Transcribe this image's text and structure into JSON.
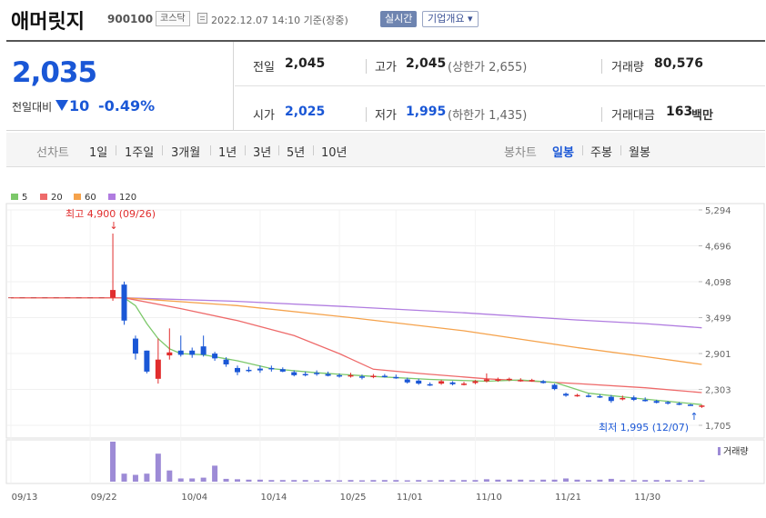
{
  "header": {
    "name": "애머릿지",
    "code": "900100",
    "market": "코스닥",
    "timestamp": "2022.12.07 14:10 기준(장중)",
    "realtime_label": "실시간",
    "company_label": "기업개요 ▾"
  },
  "price": {
    "current": "2,035",
    "change_label": "전일대비",
    "change_value": "10",
    "change_pct": "-0.49%",
    "direction": "down"
  },
  "stats": {
    "prev_close_label": "전일",
    "prev_close": "2,045",
    "high_label": "고가",
    "high": "2,045",
    "upper_limit": "(상한가 2,655)",
    "volume_label": "거래량",
    "volume": "80,576",
    "open_label": "시가",
    "open": "2,025",
    "low_label": "저가",
    "low": "1,995",
    "lower_limit": "(하한가 1,435)",
    "amount_label": "거래대금",
    "amount": "163",
    "amount_unit": "백만"
  },
  "toolbar": {
    "line_chart_label": "선차트",
    "periods": [
      "1일",
      "1주일",
      "3개월",
      "1년",
      "3년",
      "5년",
      "10년"
    ],
    "candle_chart_label": "봉차트",
    "candle_periods": [
      "일봉",
      "주봉",
      "월봉"
    ],
    "active_candle": "일봉"
  },
  "colors": {
    "up": "#e12d2d",
    "down": "#1a57d6",
    "ma5": "#7cc86a",
    "ma20": "#ee6a6a",
    "ma60": "#f5a24b",
    "ma120": "#b07ce0",
    "volume": "#9d8bd6"
  },
  "chart_data": {
    "type": "candlestick",
    "legend": [
      "5",
      "20",
      "60",
      "120"
    ],
    "y_ticks": [
      "5,294",
      "4,696",
      "4,098",
      "3,499",
      "2,901",
      "2,303",
      "1,705"
    ],
    "y_tick_values": [
      5294,
      4696,
      4098,
      3499,
      2901,
      2303,
      1705
    ],
    "ylim": [
      1705,
      5294
    ],
    "x_ticks": [
      "09/13",
      "09/22",
      "10/04",
      "10/14",
      "10/25",
      "11/01",
      "11/10",
      "11/21",
      "11/30"
    ],
    "x_tick_index": [
      0,
      7,
      15,
      22,
      29,
      34,
      41,
      48,
      55
    ],
    "annotation_high": "최고 4,900 (09/26)",
    "annotation_low": "최저 1,995 (12/07)",
    "volume_label": "거래량",
    "candles": [
      {
        "o": 3830,
        "h": 3830,
        "l": 3830,
        "c": 3830
      },
      {
        "o": 3830,
        "h": 3830,
        "l": 3830,
        "c": 3830
      },
      {
        "o": 3830,
        "h": 3830,
        "l": 3830,
        "c": 3830
      },
      {
        "o": 3830,
        "h": 3830,
        "l": 3830,
        "c": 3830
      },
      {
        "o": 3830,
        "h": 3830,
        "l": 3830,
        "c": 3830
      },
      {
        "o": 3830,
        "h": 3830,
        "l": 3830,
        "c": 3830
      },
      {
        "o": 3830,
        "h": 3830,
        "l": 3830,
        "c": 3830
      },
      {
        "o": 3830,
        "h": 3830,
        "l": 3830,
        "c": 3830
      },
      {
        "o": 3830,
        "h": 3830,
        "l": 3830,
        "c": 3830
      },
      {
        "o": 3830,
        "h": 4900,
        "l": 3780,
        "c": 3960
      },
      {
        "o": 4050,
        "h": 4100,
        "l": 3380,
        "c": 3450
      },
      {
        "o": 3150,
        "h": 3200,
        "l": 2800,
        "c": 2900
      },
      {
        "o": 2950,
        "h": 2950,
        "l": 2570,
        "c": 2600
      },
      {
        "o": 2480,
        "h": 3150,
        "l": 2400,
        "c": 2800
      },
      {
        "o": 2870,
        "h": 3320,
        "l": 2800,
        "c": 2920
      },
      {
        "o": 2950,
        "h": 3200,
        "l": 2850,
        "c": 2880
      },
      {
        "o": 2950,
        "h": 3000,
        "l": 2830,
        "c": 2880
      },
      {
        "o": 3020,
        "h": 3200,
        "l": 2850,
        "c": 2880
      },
      {
        "o": 2900,
        "h": 2930,
        "l": 2780,
        "c": 2820
      },
      {
        "o": 2800,
        "h": 2840,
        "l": 2680,
        "c": 2720
      },
      {
        "o": 2660,
        "h": 2700,
        "l": 2540,
        "c": 2590
      },
      {
        "o": 2630,
        "h": 2680,
        "l": 2590,
        "c": 2620
      },
      {
        "o": 2650,
        "h": 2700,
        "l": 2580,
        "c": 2620
      },
      {
        "o": 2660,
        "h": 2700,
        "l": 2600,
        "c": 2640
      },
      {
        "o": 2640,
        "h": 2670,
        "l": 2590,
        "c": 2600
      },
      {
        "o": 2590,
        "h": 2620,
        "l": 2520,
        "c": 2540
      },
      {
        "o": 2560,
        "h": 2600,
        "l": 2520,
        "c": 2550
      },
      {
        "o": 2580,
        "h": 2620,
        "l": 2530,
        "c": 2560
      },
      {
        "o": 2560,
        "h": 2600,
        "l": 2520,
        "c": 2530
      },
      {
        "o": 2540,
        "h": 2570,
        "l": 2500,
        "c": 2520
      },
      {
        "o": 2540,
        "h": 2580,
        "l": 2500,
        "c": 2540
      },
      {
        "o": 2520,
        "h": 2550,
        "l": 2470,
        "c": 2500
      },
      {
        "o": 2520,
        "h": 2560,
        "l": 2490,
        "c": 2530
      },
      {
        "o": 2530,
        "h": 2560,
        "l": 2500,
        "c": 2520
      },
      {
        "o": 2510,
        "h": 2550,
        "l": 2480,
        "c": 2500
      },
      {
        "o": 2470,
        "h": 2500,
        "l": 2400,
        "c": 2420
      },
      {
        "o": 2450,
        "h": 2480,
        "l": 2380,
        "c": 2400
      },
      {
        "o": 2390,
        "h": 2420,
        "l": 2360,
        "c": 2380
      },
      {
        "o": 2400,
        "h": 2460,
        "l": 2380,
        "c": 2440
      },
      {
        "o": 2420,
        "h": 2440,
        "l": 2370,
        "c": 2390
      },
      {
        "o": 2400,
        "h": 2430,
        "l": 2370,
        "c": 2400
      },
      {
        "o": 2410,
        "h": 2460,
        "l": 2390,
        "c": 2440
      },
      {
        "o": 2440,
        "h": 2570,
        "l": 2420,
        "c": 2470
      },
      {
        "o": 2460,
        "h": 2500,
        "l": 2430,
        "c": 2470
      },
      {
        "o": 2470,
        "h": 2500,
        "l": 2440,
        "c": 2480
      },
      {
        "o": 2460,
        "h": 2490,
        "l": 2430,
        "c": 2460
      },
      {
        "o": 2450,
        "h": 2480,
        "l": 2430,
        "c": 2460
      },
      {
        "o": 2440,
        "h": 2460,
        "l": 2400,
        "c": 2410
      },
      {
        "o": 2380,
        "h": 2400,
        "l": 2290,
        "c": 2310
      },
      {
        "o": 2230,
        "h": 2250,
        "l": 2180,
        "c": 2200
      },
      {
        "o": 2200,
        "h": 2230,
        "l": 2180,
        "c": 2210
      },
      {
        "o": 2200,
        "h": 2230,
        "l": 2170,
        "c": 2190
      },
      {
        "o": 2190,
        "h": 2220,
        "l": 2160,
        "c": 2180
      },
      {
        "o": 2180,
        "h": 2210,
        "l": 2080,
        "c": 2110
      },
      {
        "o": 2150,
        "h": 2200,
        "l": 2120,
        "c": 2160
      },
      {
        "o": 2170,
        "h": 2200,
        "l": 2110,
        "c": 2130
      },
      {
        "o": 2130,
        "h": 2170,
        "l": 2100,
        "c": 2120
      },
      {
        "o": 2110,
        "h": 2130,
        "l": 2070,
        "c": 2080
      },
      {
        "o": 2090,
        "h": 2110,
        "l": 2050,
        "c": 2070
      },
      {
        "o": 2070,
        "h": 2090,
        "l": 2040,
        "c": 2060
      },
      {
        "o": 2050,
        "h": 2060,
        "l": 2030,
        "c": 2045
      },
      {
        "o": 2025,
        "h": 2045,
        "l": 1995,
        "c": 2035
      }
    ],
    "volumes": [
      0,
      0,
      0,
      0,
      0,
      0,
      0,
      0,
      0,
      1.0,
      0.2,
      0.17,
      0.2,
      0.7,
      0.28,
      0.08,
      0.08,
      0.1,
      0.4,
      0.07,
      0.06,
      0.05,
      0.05,
      0.04,
      0.04,
      0.04,
      0.04,
      0.03,
      0.04,
      0.03,
      0.04,
      0.03,
      0.04,
      0.04,
      0.04,
      0.03,
      0.04,
      0.03,
      0.04,
      0.04,
      0.04,
      0.04,
      0.06,
      0.05,
      0.05,
      0.05,
      0.04,
      0.05,
      0.05,
      0.08,
      0.05,
      0.04,
      0.05,
      0.07,
      0.04,
      0.04,
      0.04,
      0.04,
      0.04,
      0.03,
      0.03,
      0.02
    ],
    "ma_lines": {
      "ma5": [
        [
          10,
          3830
        ],
        [
          11,
          3700
        ],
        [
          12,
          3400
        ],
        [
          13,
          3150
        ],
        [
          14,
          2980
        ],
        [
          15,
          2900
        ],
        [
          17,
          2880
        ],
        [
          20,
          2780
        ],
        [
          23,
          2650
        ],
        [
          27,
          2580
        ],
        [
          32,
          2520
        ],
        [
          37,
          2470
        ],
        [
          42,
          2440
        ],
        [
          45,
          2460
        ],
        [
          48,
          2420
        ],
        [
          51,
          2240
        ],
        [
          55,
          2160
        ],
        [
          61,
          2050
        ]
      ],
      "ma20": [
        [
          0,
          3830
        ],
        [
          10,
          3830
        ],
        [
          15,
          3650
        ],
        [
          20,
          3450
        ],
        [
          25,
          3200
        ],
        [
          29,
          2900
        ],
        [
          32,
          2640
        ],
        [
          36,
          2570
        ],
        [
          42,
          2480
        ],
        [
          50,
          2400
        ],
        [
          56,
          2330
        ],
        [
          61,
          2250
        ]
      ],
      "ma60": [
        [
          0,
          3830
        ],
        [
          10,
          3830
        ],
        [
          20,
          3700
        ],
        [
          30,
          3500
        ],
        [
          40,
          3280
        ],
        [
          50,
          3000
        ],
        [
          56,
          2850
        ],
        [
          61,
          2720
        ]
      ],
      "ma120": [
        [
          10,
          3830
        ],
        [
          20,
          3770
        ],
        [
          30,
          3680
        ],
        [
          40,
          3580
        ],
        [
          50,
          3460
        ],
        [
          56,
          3400
        ],
        [
          61,
          3330
        ]
      ]
    }
  }
}
